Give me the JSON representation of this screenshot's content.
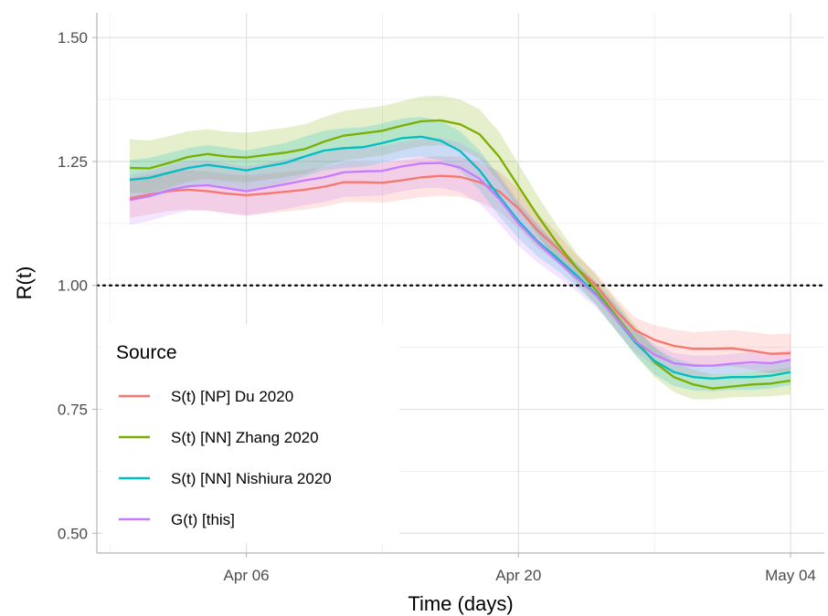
{
  "chart_data": {
    "type": "line",
    "xlabel": "Time (days)",
    "ylabel": "R(t)",
    "x_start": "2020-03-31",
    "x_end": "2020-05-04",
    "x_ticks": [
      {
        "date": "2020-04-06",
        "label": "Apr 06"
      },
      {
        "date": "2020-04-20",
        "label": "Apr 20"
      },
      {
        "date": "2020-05-04",
        "label": "May 04"
      }
    ],
    "ylim": [
      0.46,
      1.55
    ],
    "y_ticks": [
      0.5,
      0.75,
      1.0,
      1.25,
      1.5
    ],
    "y_tick_labels": [
      "0.50",
      "0.75",
      "1.00",
      "1.25",
      "1.50"
    ],
    "reference_line": {
      "y": 1.0,
      "style": "dotted",
      "color": "#000000"
    },
    "grid": true,
    "legend": {
      "title": "Source",
      "position": "bottom-left"
    },
    "series": [
      {
        "name": "S(t) [NP] Du 2020",
        "color": "#F8766D",
        "x": [
          "2020-03-31",
          "2020-04-01",
          "2020-04-02",
          "2020-04-03",
          "2020-04-04",
          "2020-04-05",
          "2020-04-06",
          "2020-04-07",
          "2020-04-08",
          "2020-04-09",
          "2020-04-10",
          "2020-04-11",
          "2020-04-12",
          "2020-04-13",
          "2020-04-14",
          "2020-04-15",
          "2020-04-16",
          "2020-04-17",
          "2020-04-18",
          "2020-04-19",
          "2020-04-20",
          "2020-04-21",
          "2020-04-22",
          "2020-04-23",
          "2020-04-24",
          "2020-04-25",
          "2020-04-26",
          "2020-04-27",
          "2020-04-28",
          "2020-04-29",
          "2020-04-30",
          "2020-05-01",
          "2020-05-02",
          "2020-05-03",
          "2020-05-04"
        ],
        "y": [
          1.176,
          1.183,
          1.19,
          1.193,
          1.19,
          1.185,
          1.182,
          1.185,
          1.189,
          1.193,
          1.199,
          1.208,
          1.208,
          1.207,
          1.212,
          1.218,
          1.221,
          1.219,
          1.208,
          1.19,
          1.155,
          1.11,
          1.075,
          1.035,
          1.0,
          0.95,
          0.91,
          0.89,
          0.878,
          0.872,
          0.872,
          0.873,
          0.868,
          0.862,
          0.863
        ],
        "lower": [
          1.136,
          1.143,
          1.15,
          1.153,
          1.15,
          1.145,
          1.142,
          1.145,
          1.149,
          1.153,
          1.159,
          1.168,
          1.168,
          1.167,
          1.172,
          1.178,
          1.181,
          1.179,
          1.168,
          1.15,
          1.115,
          1.075,
          1.045,
          1.01,
          0.975,
          0.925,
          0.885,
          0.86,
          0.845,
          0.838,
          0.836,
          0.836,
          0.83,
          0.823,
          0.823
        ],
        "upper": [
          1.216,
          1.223,
          1.23,
          1.233,
          1.23,
          1.225,
          1.222,
          1.225,
          1.229,
          1.233,
          1.239,
          1.248,
          1.248,
          1.247,
          1.252,
          1.258,
          1.261,
          1.259,
          1.248,
          1.23,
          1.195,
          1.145,
          1.105,
          1.06,
          1.025,
          0.975,
          0.935,
          0.92,
          0.911,
          0.906,
          0.908,
          0.91,
          0.906,
          0.901,
          0.903
        ]
      },
      {
        "name": "S(t) [NN] Zhang 2020",
        "color": "#7CAE00",
        "x": [
          "2020-03-31",
          "2020-04-01",
          "2020-04-02",
          "2020-04-03",
          "2020-04-04",
          "2020-04-05",
          "2020-04-06",
          "2020-04-07",
          "2020-04-08",
          "2020-04-09",
          "2020-04-10",
          "2020-04-11",
          "2020-04-12",
          "2020-04-13",
          "2020-04-14",
          "2020-04-15",
          "2020-04-16",
          "2020-04-17",
          "2020-04-18",
          "2020-04-19",
          "2020-04-20",
          "2020-04-21",
          "2020-04-22",
          "2020-04-23",
          "2020-04-24",
          "2020-04-25",
          "2020-04-26",
          "2020-04-27",
          "2020-04-28",
          "2020-04-29",
          "2020-04-30",
          "2020-05-01",
          "2020-05-02",
          "2020-05-03",
          "2020-05-04"
        ],
        "y": [
          1.237,
          1.236,
          1.247,
          1.259,
          1.265,
          1.26,
          1.258,
          1.263,
          1.268,
          1.275,
          1.29,
          1.302,
          1.307,
          1.312,
          1.322,
          1.331,
          1.333,
          1.325,
          1.305,
          1.26,
          1.2,
          1.14,
          1.085,
          1.035,
          0.99,
          0.94,
          0.89,
          0.845,
          0.815,
          0.8,
          0.792,
          0.796,
          0.8,
          0.802,
          0.808
        ],
        "lower": [
          1.187,
          1.186,
          1.197,
          1.209,
          1.215,
          1.21,
          1.208,
          1.213,
          1.218,
          1.225,
          1.24,
          1.252,
          1.257,
          1.262,
          1.272,
          1.281,
          1.283,
          1.275,
          1.255,
          1.21,
          1.155,
          1.1,
          1.05,
          1.005,
          0.96,
          0.91,
          0.86,
          0.815,
          0.785,
          0.77,
          0.77,
          0.774,
          0.775,
          0.776,
          0.78
        ],
        "upper": [
          1.295,
          1.292,
          1.301,
          1.311,
          1.315,
          1.31,
          1.308,
          1.313,
          1.318,
          1.325,
          1.34,
          1.352,
          1.357,
          1.362,
          1.372,
          1.381,
          1.383,
          1.375,
          1.355,
          1.31,
          1.245,
          1.18,
          1.12,
          1.065,
          1.02,
          0.97,
          0.92,
          0.875,
          0.845,
          0.83,
          0.82,
          0.822,
          0.825,
          0.828,
          0.835
        ]
      },
      {
        "name": "S(t) [NN] Nishiura 2020",
        "color": "#00BFC4",
        "x": [
          "2020-03-31",
          "2020-04-01",
          "2020-04-02",
          "2020-04-03",
          "2020-04-04",
          "2020-04-05",
          "2020-04-06",
          "2020-04-07",
          "2020-04-08",
          "2020-04-09",
          "2020-04-10",
          "2020-04-11",
          "2020-04-12",
          "2020-04-13",
          "2020-04-14",
          "2020-04-15",
          "2020-04-16",
          "2020-04-17",
          "2020-04-18",
          "2020-04-19",
          "2020-04-20",
          "2020-04-21",
          "2020-04-22",
          "2020-04-23",
          "2020-04-24",
          "2020-04-25",
          "2020-04-26",
          "2020-04-27",
          "2020-04-28",
          "2020-04-29",
          "2020-04-30",
          "2020-05-01",
          "2020-05-02",
          "2020-05-03",
          "2020-05-04"
        ],
        "y": [
          1.213,
          1.217,
          1.227,
          1.237,
          1.243,
          1.238,
          1.232,
          1.24,
          1.247,
          1.26,
          1.272,
          1.277,
          1.279,
          1.287,
          1.297,
          1.3,
          1.292,
          1.271,
          1.232,
          1.18,
          1.13,
          1.088,
          1.055,
          1.02,
          0.982,
          0.935,
          0.885,
          0.848,
          0.825,
          0.815,
          0.812,
          0.815,
          0.815,
          0.818,
          0.825
        ],
        "lower": [
          1.173,
          1.177,
          1.187,
          1.197,
          1.203,
          1.198,
          1.192,
          1.2,
          1.207,
          1.22,
          1.232,
          1.237,
          1.239,
          1.247,
          1.257,
          1.26,
          1.252,
          1.231,
          1.192,
          1.14,
          1.095,
          1.058,
          1.03,
          0.997,
          0.96,
          0.91,
          0.86,
          0.82,
          0.797,
          0.788,
          0.786,
          0.789,
          0.789,
          0.792,
          0.799
        ],
        "upper": [
          1.253,
          1.257,
          1.267,
          1.277,
          1.283,
          1.278,
          1.272,
          1.28,
          1.287,
          1.3,
          1.312,
          1.317,
          1.319,
          1.327,
          1.337,
          1.34,
          1.332,
          1.311,
          1.272,
          1.22,
          1.165,
          1.12,
          1.082,
          1.045,
          1.006,
          0.962,
          0.912,
          0.876,
          0.853,
          0.842,
          0.838,
          0.841,
          0.841,
          0.844,
          0.851
        ]
      },
      {
        "name": "G(t) [this]",
        "color": "#C77CFF",
        "x": [
          "2020-03-31",
          "2020-04-01",
          "2020-04-02",
          "2020-04-03",
          "2020-04-04",
          "2020-04-05",
          "2020-04-06",
          "2020-04-07",
          "2020-04-08",
          "2020-04-09",
          "2020-04-10",
          "2020-04-11",
          "2020-04-12",
          "2020-04-13",
          "2020-04-14",
          "2020-04-15",
          "2020-04-16",
          "2020-04-17",
          "2020-04-18",
          "2020-04-19",
          "2020-04-20",
          "2020-04-21",
          "2020-04-22",
          "2020-04-23",
          "2020-04-24",
          "2020-04-25",
          "2020-04-26",
          "2020-04-27",
          "2020-04-28",
          "2020-04-29",
          "2020-04-30",
          "2020-05-01",
          "2020-05-02",
          "2020-05-03",
          "2020-05-04"
        ],
        "y": [
          1.172,
          1.18,
          1.192,
          1.2,
          1.202,
          1.196,
          1.19,
          1.197,
          1.204,
          1.212,
          1.218,
          1.228,
          1.23,
          1.231,
          1.24,
          1.246,
          1.247,
          1.238,
          1.215,
          1.175,
          1.125,
          1.085,
          1.05,
          1.015,
          0.98,
          0.935,
          0.888,
          0.86,
          0.843,
          0.838,
          0.838,
          0.842,
          0.845,
          0.843,
          0.85
        ],
        "lower": [
          1.122,
          1.13,
          1.142,
          1.15,
          1.152,
          1.146,
          1.14,
          1.147,
          1.154,
          1.162,
          1.168,
          1.178,
          1.18,
          1.181,
          1.19,
          1.196,
          1.197,
          1.188,
          1.165,
          1.125,
          1.08,
          1.045,
          1.018,
          0.988,
          0.955,
          0.91,
          0.865,
          0.838,
          0.822,
          0.818,
          0.818,
          0.822,
          0.825,
          0.823,
          0.83
        ],
        "upper": [
          1.222,
          1.23,
          1.242,
          1.25,
          1.252,
          1.246,
          1.24,
          1.247,
          1.254,
          1.262,
          1.268,
          1.278,
          1.28,
          1.281,
          1.29,
          1.296,
          1.297,
          1.288,
          1.265,
          1.225,
          1.17,
          1.125,
          1.082,
          1.042,
          1.005,
          0.96,
          0.911,
          0.882,
          0.864,
          0.858,
          0.858,
          0.862,
          0.865,
          0.863,
          0.87
        ]
      }
    ]
  }
}
